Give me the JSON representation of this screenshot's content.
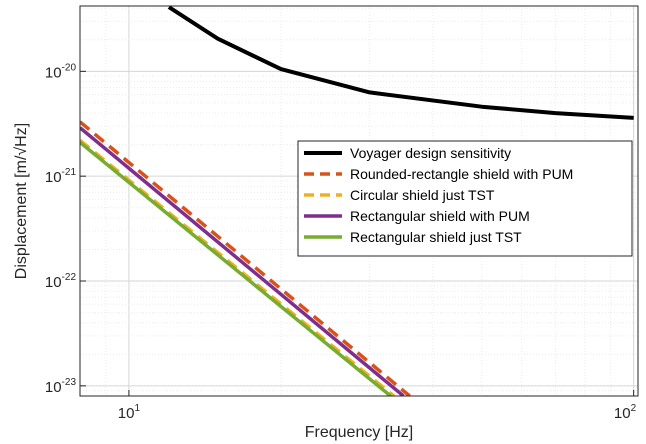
{
  "chart_data": {
    "type": "line",
    "title": "",
    "xlabel": "Frequency [Hz]",
    "ylabel": "Displacement [m/√Hz]",
    "xscale": "log",
    "yscale": "log",
    "xlim": [
      8.0,
      102
    ],
    "ylim": [
      8e-24,
      4.2e-20
    ],
    "x_ticks": [
      {
        "base": "10",
        "exp": "1"
      },
      {
        "base": "10",
        "exp": "2"
      }
    ],
    "y_ticks": [
      {
        "base": "10",
        "exp": "-23"
      },
      {
        "base": "10",
        "exp": "-22"
      },
      {
        "base": "10",
        "exp": "-21"
      },
      {
        "base": "10",
        "exp": "-20"
      }
    ],
    "x_tick_values": [
      10,
      100
    ],
    "y_tick_values": [
      1e-23,
      1e-22,
      1e-21,
      1e-20
    ],
    "grid": true,
    "minor_grid": true,
    "legend_position": "center-right",
    "series": [
      {
        "name": "Voyager design sensitivity",
        "color": "#000000",
        "dash": "solid",
        "x": [
          12,
          15,
          20,
          30,
          50,
          70,
          100
        ],
        "y": [
          4.1e-20,
          2.05e-20,
          1.05e-20,
          6.3e-21,
          4.6e-21,
          4e-21,
          3.6e-21
        ]
      },
      {
        "name": "Rounded-rectangle shield with PUM",
        "color": "#D95319",
        "dash": "dashed",
        "x": [
          8,
          36
        ],
        "y": [
          3.3e-21,
          8e-24
        ]
      },
      {
        "name": "Circular shield just TST",
        "color": "#EDB120",
        "dash": "dashed",
        "x": [
          8,
          33.5
        ],
        "y": [
          2.2e-21,
          8e-24
        ]
      },
      {
        "name": "Rectangular shield with PUM",
        "color": "#7E2F8E",
        "dash": "solid",
        "x": [
          8,
          35
        ],
        "y": [
          2.9e-21,
          8e-24
        ]
      },
      {
        "name": "Rectangular shield just TST",
        "color": "#77AC30",
        "dash": "solid",
        "x": [
          8,
          33
        ],
        "y": [
          2.1e-21,
          8e-24
        ]
      }
    ]
  }
}
